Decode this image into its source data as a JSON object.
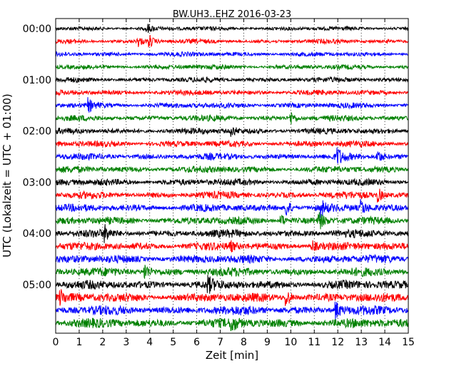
{
  "chart_data": {
    "type": "line",
    "title": "BW.UH3..EHZ 2016-03-23",
    "xlabel": "Zeit  [min]",
    "ylabel": "UTC (Lokalzeit = UTC + 01:00)",
    "xlim": [
      0,
      15
    ],
    "x_ticks": [
      "0",
      "1",
      "2",
      "3",
      "4",
      "5",
      "6",
      "7",
      "8",
      "9",
      "10",
      "11",
      "12",
      "13",
      "14",
      "15"
    ],
    "y_tick_labels": [
      "00:00",
      "01:00",
      "02:00",
      "03:00",
      "04:00",
      "05:00"
    ],
    "trace_interval_min": 15,
    "trace_count": 24,
    "grid": "vertical dotted at each minute",
    "trace_colors": [
      "#000000",
      "#ff0000",
      "#0000ff",
      "#008000"
    ]
  }
}
